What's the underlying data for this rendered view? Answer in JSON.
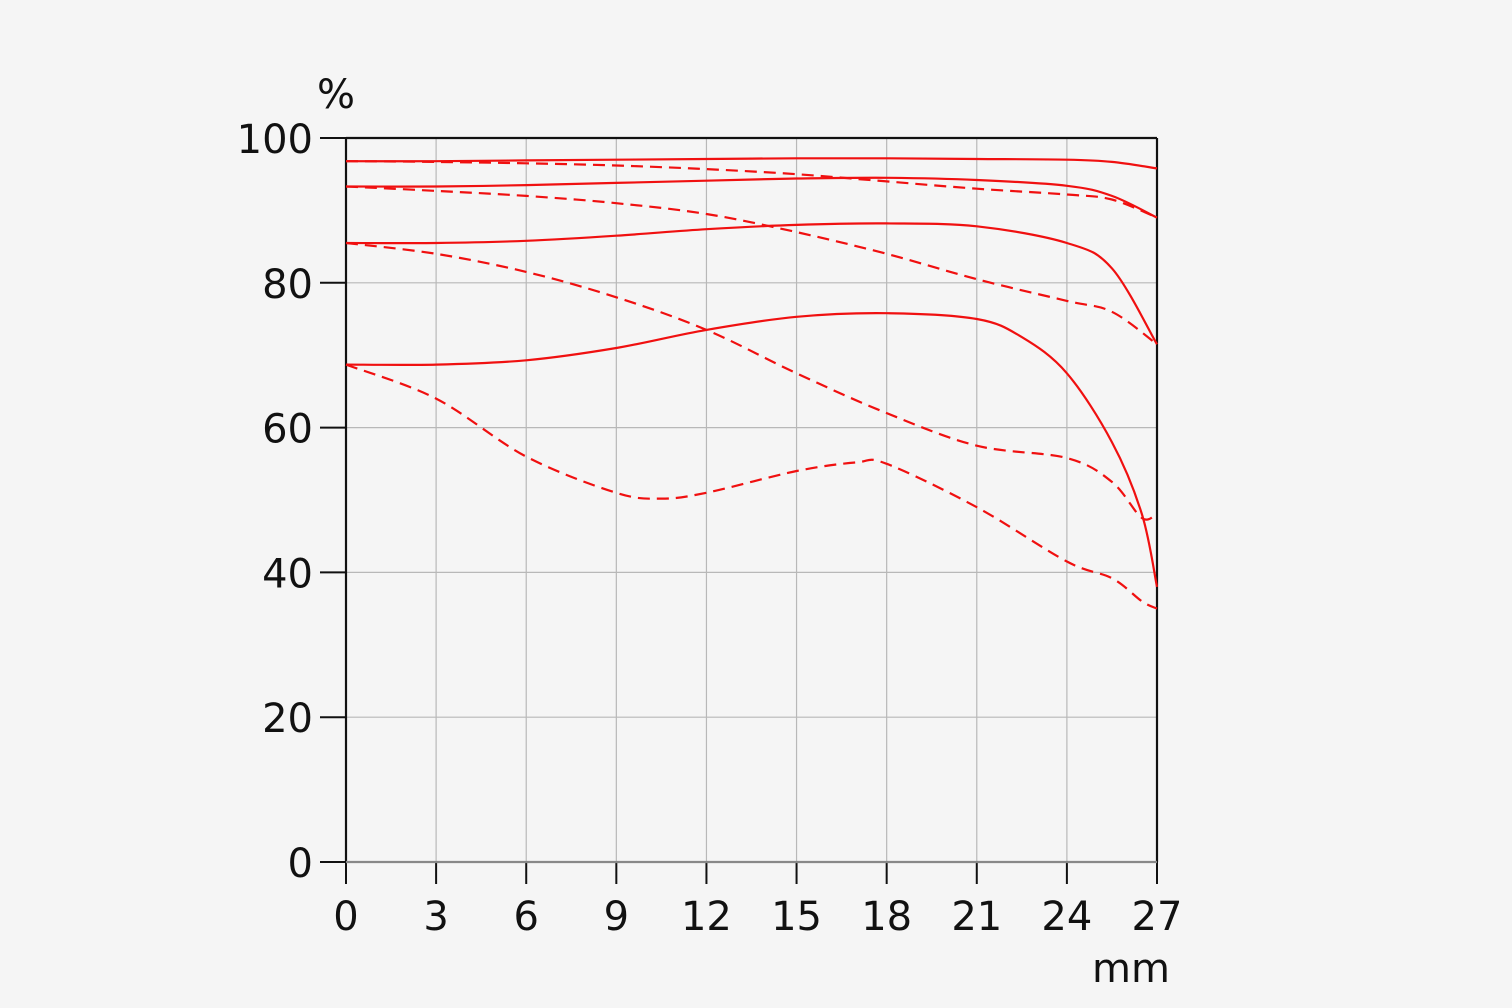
{
  "colors": {
    "background": "#f5f5f5",
    "curve": "#f01010",
    "grid": "#b8b8b8",
    "axis": "#111111"
  },
  "chart_data": {
    "type": "line",
    "title": "",
    "xlabel": "mm",
    "ylabel": "%",
    "xlim": [
      0,
      27
    ],
    "ylim": [
      0,
      100
    ],
    "x_ticks": [
      "0",
      "3",
      "6",
      "9",
      "12",
      "15",
      "18",
      "21",
      "24",
      "27"
    ],
    "y_ticks": [
      "0",
      "20",
      "40",
      "60",
      "80",
      "100"
    ],
    "grid": true,
    "legend": "none",
    "series": [
      {
        "style": "solid",
        "x": [
          0,
          3,
          6,
          9,
          12,
          15,
          18,
          21,
          24,
          25.5,
          27
        ],
        "y": [
          96.8,
          96.8,
          96.9,
          97.0,
          97.1,
          97.2,
          97.2,
          97.1,
          97.0,
          96.7,
          95.8
        ]
      },
      {
        "style": "dashed",
        "x": [
          0,
          3,
          6,
          9,
          12,
          15,
          18,
          21,
          24,
          25.5,
          27
        ],
        "y": [
          96.8,
          96.7,
          96.5,
          96.2,
          95.7,
          95.0,
          94.0,
          93.0,
          92.2,
          91.5,
          89.0
        ]
      },
      {
        "style": "solid",
        "x": [
          0,
          3,
          6,
          9,
          12,
          15,
          18,
          21,
          24,
          25.5,
          27
        ],
        "y": [
          93.3,
          93.3,
          93.5,
          93.8,
          94.1,
          94.4,
          94.5,
          94.2,
          93.4,
          92.0,
          89.0
        ]
      },
      {
        "style": "dashed",
        "x": [
          0,
          3,
          6,
          9,
          12,
          15,
          18,
          21,
          24,
          25.5,
          27
        ],
        "y": [
          93.3,
          92.7,
          92.0,
          91.0,
          89.5,
          87.0,
          84.0,
          80.5,
          77.5,
          76.0,
          71.5
        ]
      },
      {
        "style": "solid",
        "x": [
          0,
          3,
          6,
          9,
          12,
          15,
          18,
          21,
          24,
          25.5,
          27
        ],
        "y": [
          85.5,
          85.5,
          85.8,
          86.5,
          87.4,
          88.0,
          88.2,
          87.8,
          85.5,
          82.0,
          71.5
        ]
      },
      {
        "style": "dashed",
        "x": [
          0,
          3,
          6,
          9,
          12,
          15,
          18,
          21,
          24,
          25.5,
          26.5,
          27
        ],
        "y": [
          85.5,
          84.0,
          81.5,
          78.0,
          73.5,
          67.5,
          62.0,
          57.5,
          55.8,
          52.5,
          47.5,
          48.2
        ]
      },
      {
        "style": "solid",
        "x": [
          0,
          3,
          6,
          9,
          12,
          15,
          18,
          21,
          22.5,
          24,
          25.5,
          26.5,
          27
        ],
        "y": [
          68.7,
          68.7,
          69.3,
          71.0,
          73.5,
          75.3,
          75.8,
          75.0,
          72.5,
          67.5,
          58.0,
          48.0,
          38.0
        ]
      },
      {
        "style": "dashed",
        "x": [
          0,
          3,
          6,
          9,
          10.5,
          12,
          15,
          17,
          18,
          21,
          24,
          25.5,
          26.5,
          27
        ],
        "y": [
          68.7,
          64.0,
          56.0,
          51.0,
          50.2,
          51.0,
          54.0,
          55.2,
          55.0,
          49.0,
          41.5,
          39.2,
          36.0,
          35.0
        ]
      }
    ]
  }
}
